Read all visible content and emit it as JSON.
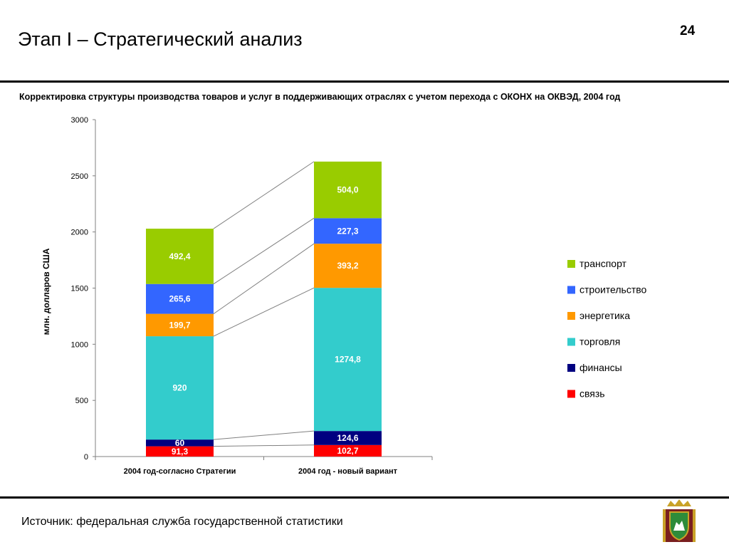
{
  "header": {
    "title": "Этап I – Стратегический анализ",
    "page_number": "24",
    "subtitle": "Корректировка структуры производства товаров и услуг в поддерживающих отраслях с учетом перехода с ОКОНХ на ОКВЭД, 2004 год"
  },
  "footer": {
    "source": "Источник: федеральная служба государственной статистики"
  },
  "colors": {
    "связь": "#ff0000",
    "финансы": "#000080",
    "торговля": "#33cccc",
    "энергетика": "#ff9900",
    "строительство": "#3366ff",
    "транспорт": "#99cc00"
  },
  "chart_data": {
    "type": "bar",
    "stacked": true,
    "categories": [
      "2004 год-согласно Стратегии",
      "2004 год - новый вариант"
    ],
    "ylabel": "млн. долларов США",
    "ylim": [
      0,
      3000
    ],
    "yticks": [
      0,
      500,
      1000,
      1500,
      2000,
      2500,
      3000
    ],
    "legend_position": "right",
    "series": [
      {
        "name": "связь",
        "color": "#ff0000",
        "values": [
          91.3,
          102.7
        ],
        "labels": [
          "91,3",
          "102,7"
        ]
      },
      {
        "name": "финансы",
        "color": "#000080",
        "values": [
          60,
          124.6
        ],
        "labels": [
          "60",
          "124,6"
        ]
      },
      {
        "name": "торговля",
        "color": "#33cccc",
        "values": [
          920,
          1274.8
        ],
        "labels": [
          "920",
          "1274,8"
        ]
      },
      {
        "name": "энергетика",
        "color": "#ff9900",
        "values": [
          199.7,
          393.2
        ],
        "labels": [
          "199,7",
          "393,2"
        ]
      },
      {
        "name": "строительство",
        "color": "#3366ff",
        "values": [
          265.6,
          227.3
        ],
        "labels": [
          "265,6",
          "227,3"
        ]
      },
      {
        "name": "транспорт",
        "color": "#99cc00",
        "values": [
          492.4,
          504.0
        ],
        "labels": [
          "492,4",
          "504,0"
        ]
      }
    ],
    "legend_order": [
      "транспорт",
      "строительство",
      "энергетика",
      "торговля",
      "финансы",
      "связь"
    ]
  }
}
